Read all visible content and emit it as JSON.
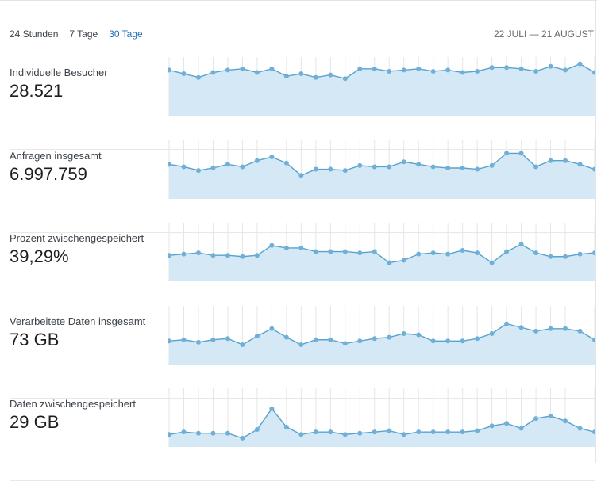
{
  "tabs": [
    {
      "label": "24 Stunden",
      "active": false
    },
    {
      "label": "7 Tage",
      "active": false
    },
    {
      "label": "30 Tage",
      "active": true
    }
  ],
  "date_range": "22 JULI — 21 AUGUST",
  "colors": {
    "accent": "#2271b1",
    "area_fill": "#d5e8f5",
    "line": "#5aa2cc"
  },
  "metrics": [
    {
      "label": "Individuelle Besucher",
      "value": "28.521",
      "series": [
        62,
        59,
        56,
        60,
        62,
        63,
        60,
        63,
        57,
        59,
        56,
        58,
        55,
        63,
        63,
        61,
        62,
        63,
        61,
        62,
        60,
        61,
        64,
        64,
        63,
        61,
        65,
        62,
        67,
        60
      ]
    },
    {
      "label": "Anfragen insgesamt",
      "value": "6.997.759",
      "series": [
        53,
        51,
        48,
        50,
        53,
        51,
        56,
        59,
        54,
        44,
        49,
        49,
        48,
        52,
        51,
        51,
        55,
        53,
        51,
        50,
        50,
        49,
        52,
        62,
        62,
        51,
        56,
        56,
        53,
        49
      ]
    },
    {
      "label": "Prozent zwischengespeichert",
      "value": "39,29%",
      "series": [
        46,
        47,
        48,
        46,
        46,
        45,
        46,
        54,
        52,
        52,
        49,
        49,
        49,
        48,
        49,
        40,
        42,
        47,
        48,
        47,
        50,
        48,
        40,
        49,
        55,
        48,
        45,
        45,
        47,
        48
      ]
    },
    {
      "label": "Verarbeitete Daten insgesamt",
      "value": "73 GB",
      "series": [
        44,
        45,
        43,
        45,
        46,
        41,
        48,
        54,
        47,
        41,
        45,
        45,
        42,
        44,
        46,
        47,
        50,
        49,
        44,
        44,
        44,
        46,
        50,
        58,
        55,
        52,
        54,
        54,
        52,
        45
      ]
    },
    {
      "label": "Daten zwischengespeichert",
      "value": "29 GB",
      "series": [
        35,
        37,
        36,
        36,
        36,
        32,
        39,
        56,
        41,
        35,
        37,
        37,
        35,
        36,
        37,
        38,
        35,
        37,
        37,
        37,
        37,
        38,
        42,
        44,
        40,
        48,
        50,
        46,
        40,
        37
      ]
    }
  ]
}
